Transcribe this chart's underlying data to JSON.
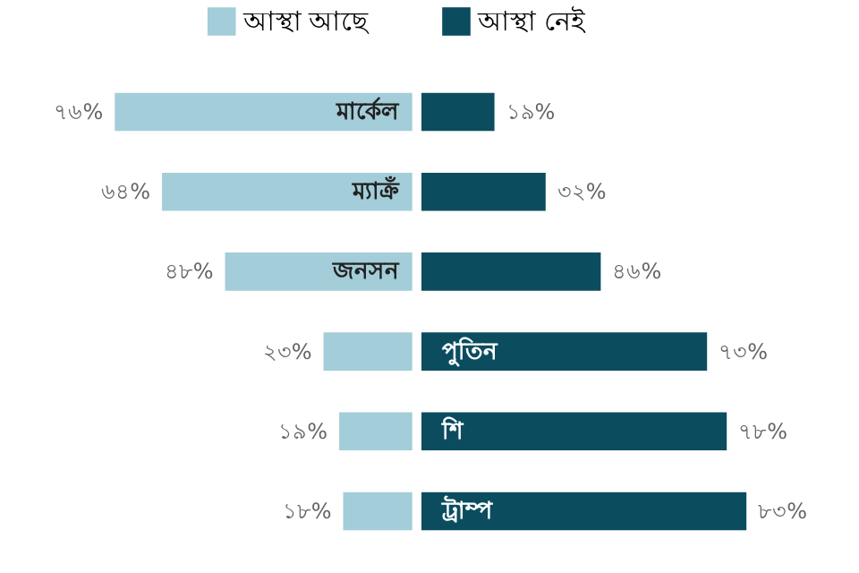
{
  "chart_data": [
    {
      "type": "bar",
      "orientation": "horizontal",
      "categories": [
        "মার্কেল",
        "ম্যাক্রঁ",
        "জনসন",
        null,
        null,
        null
      ],
      "series": [
        {
          "name": "আস্থা আছে",
          "color": "#a3cdd9",
          "values": [
            76,
            64,
            48,
            23,
            19,
            18
          ],
          "value_labels": [
            "৭৬%",
            "৬৪%",
            "৪৮%",
            "২৩%",
            "১৯%",
            "১৮%"
          ]
        }
      ],
      "legend": "top"
    },
    {
      "type": "bar",
      "orientation": "horizontal",
      "categories": [
        null,
        null,
        null,
        "পুতিন",
        "শি",
        "ট্রাম্প"
      ],
      "series": [
        {
          "name": "আস্থা নেই",
          "color": "#0b4d5e",
          "values": [
            19,
            32,
            46,
            73,
            78,
            83
          ],
          "value_labels": [
            "১৯%",
            "৩২%",
            "৪৬%",
            "৭৩%",
            "৭৮%",
            "৮৩%"
          ]
        }
      ],
      "legend": "top"
    }
  ]
}
